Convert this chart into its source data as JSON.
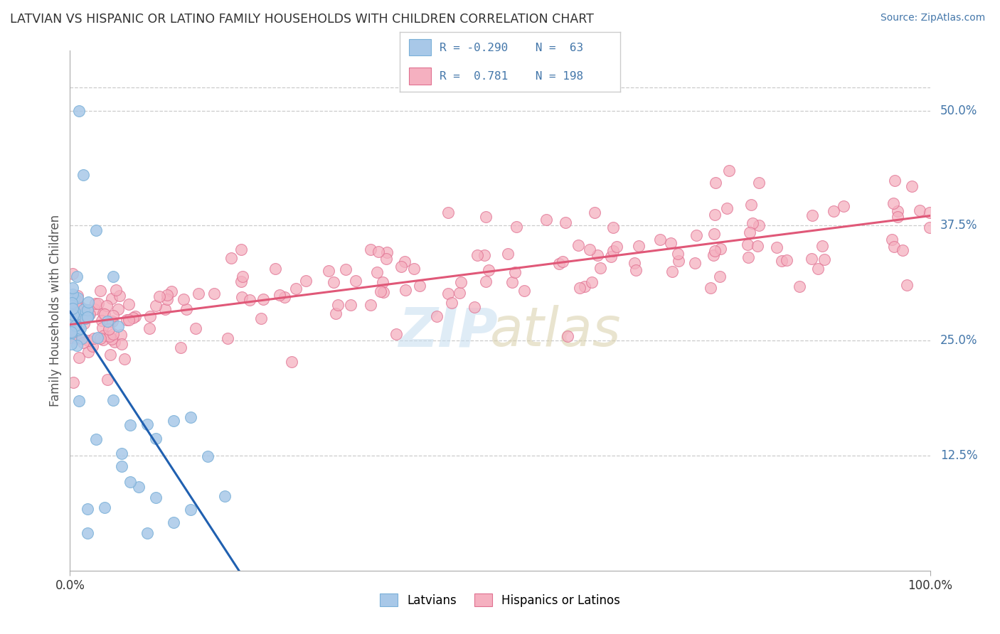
{
  "title": "LATVIAN VS HISPANIC OR LATINO FAMILY HOUSEHOLDS WITH CHILDREN CORRELATION CHART",
  "source": "Source: ZipAtlas.com",
  "ylabel": "Family Households with Children",
  "latvian_R": -0.29,
  "latvian_N": 63,
  "hispanic_R": 0.781,
  "hispanic_N": 198,
  "xlim": [
    0.0,
    1.0
  ],
  "ylim": [
    0.0,
    0.565
  ],
  "ytick_positions": [
    0.125,
    0.25,
    0.375,
    0.5
  ],
  "ytick_labels": [
    "12.5%",
    "25.0%",
    "37.5%",
    "50.0%"
  ],
  "xtick_positions": [
    0.0,
    1.0
  ],
  "xtick_labels": [
    "0.0%",
    "100.0%"
  ],
  "latvian_color": "#a8c8e8",
  "latvian_edge_color": "#7ab0d8",
  "latvian_line_color": "#2060b0",
  "hispanic_color": "#f5b0c0",
  "hispanic_edge_color": "#e07090",
  "hispanic_line_color": "#e05878",
  "background_color": "#ffffff",
  "grid_color": "#cccccc",
  "grid_dash_latvian": "#aabbcc",
  "watermark_zip_color": "#c5ddf0",
  "watermark_atlas_color": "#d8cfa8",
  "title_color": "#333333",
  "source_color": "#4477aa",
  "axis_label_color": "#555555",
  "tick_label_color": "#333333",
  "right_tick_color": "#4477aa",
  "legend_border_color": "#cccccc"
}
